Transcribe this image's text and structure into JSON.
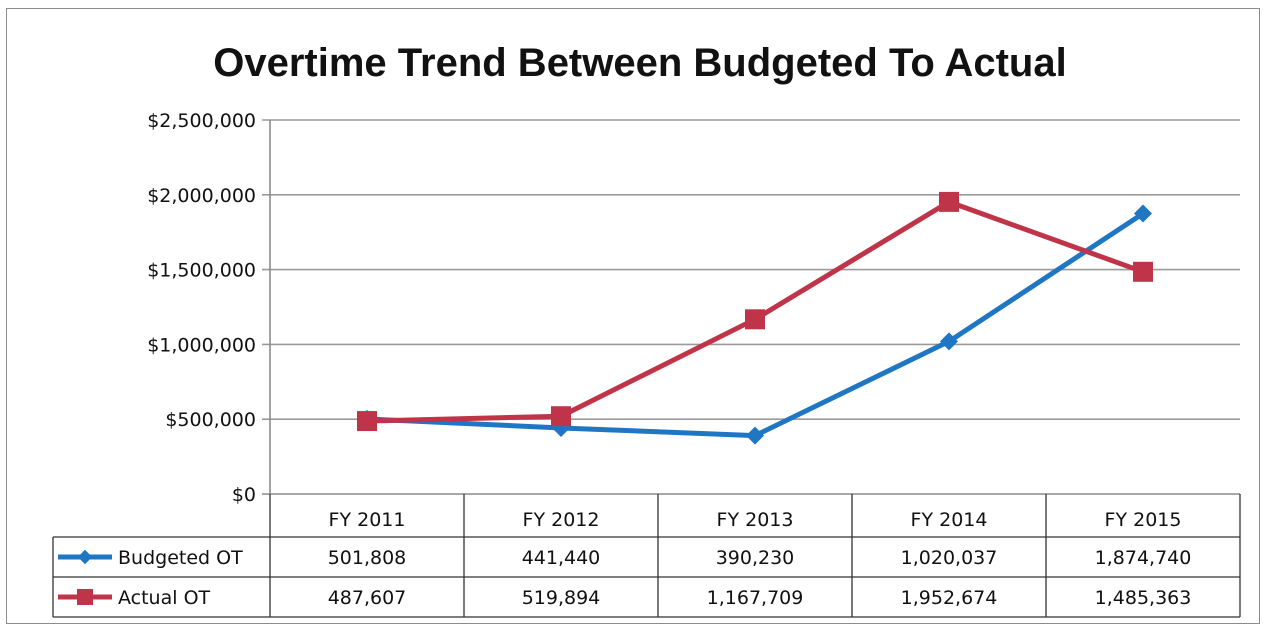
{
  "chart_data": {
    "type": "line",
    "title": "Overtime Trend Between Budgeted To Actual",
    "categories": [
      "FY 2011",
      "FY 2012",
      "FY 2013",
      "FY 2014",
      "FY 2015"
    ],
    "ylim": [
      0,
      2500000
    ],
    "ytick_values": [
      0,
      500000,
      1000000,
      1500000,
      2000000,
      2500000
    ],
    "ytick_labels": [
      "$0",
      "$500,000",
      "$1,000,000",
      "$1,500,000",
      "$2,000,000",
      "$2,500,000"
    ],
    "grid": true,
    "legend": "data-table",
    "series": [
      {
        "name": "Budgeted OT",
        "values": [
          501808,
          441440,
          390230,
          1020037,
          1874740
        ],
        "labels": [
          "501,808",
          "441,440",
          "390,230",
          "1,020,037",
          "1,874,740"
        ],
        "color": "#1f77c4",
        "marker": "diamond"
      },
      {
        "name": "Actual OT",
        "values": [
          487607,
          519894,
          1167709,
          1952674,
          1485363
        ],
        "labels": [
          "487,607",
          "519,894",
          "1,167,709",
          "1,952,674",
          "1,485,363"
        ],
        "color": "#c0344a",
        "marker": "square"
      }
    ]
  }
}
